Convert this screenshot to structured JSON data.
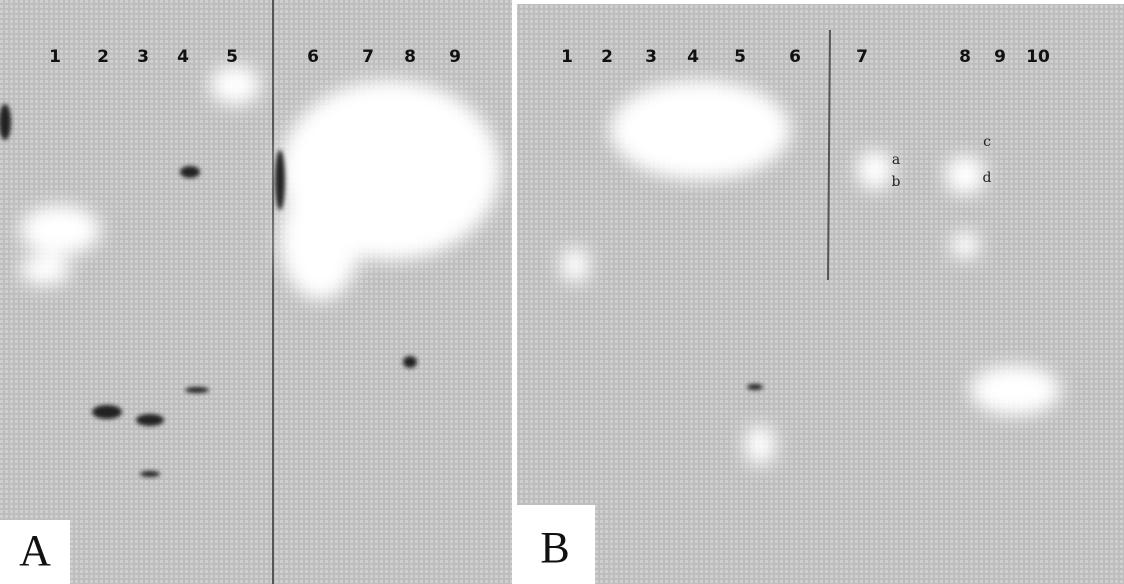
{
  "panels": [
    {
      "label": "A",
      "lanes": [
        "1",
        "2",
        "3",
        "4",
        "5",
        "6",
        "7",
        "8",
        "9"
      ]
    },
    {
      "label": "B",
      "lanes": [
        "1",
        "2",
        "3",
        "4",
        "5",
        "6",
        "7",
        "8",
        "9",
        "10"
      ],
      "annotations": [
        "a",
        "b",
        "c",
        "d"
      ]
    }
  ]
}
